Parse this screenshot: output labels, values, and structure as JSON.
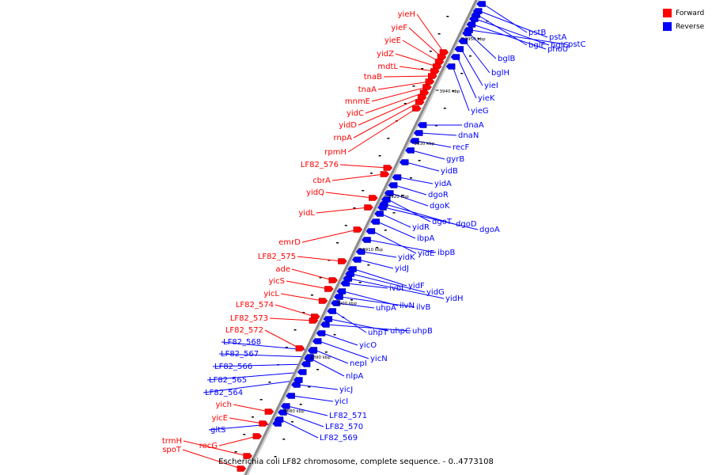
{
  "legend": {
    "forward_label": "Forward",
    "reverse_label": "Reverse",
    "forward_color": "#ff0000",
    "reverse_color": "#0000ff"
  },
  "caption": "Escherichia coli LF82 chromosome, complete sequence. - 0..4773108",
  "colors": {
    "backbone": "#8c8c8c",
    "forward": "#ff0000",
    "reverse": "#0000ff"
  },
  "ticks": [
    "3950 kbp",
    "3940 kbp",
    "3930 kbp",
    "3920 kbp",
    "3910 kbp",
    "3900 kbp",
    "3890 kbp",
    "3880 kbp"
  ],
  "forward_genes": [
    "yieH",
    "yieF",
    "yieE",
    "yidZ",
    "mdtL",
    "tnaB",
    "tnaA",
    "mnmE",
    "yidC",
    "yidD",
    "rnpA",
    "rpmH",
    "LF82_576",
    "cbrA",
    "yidQ",
    "yidL",
    "emrD",
    "LF82_575",
    "ade",
    "yicS",
    "yicL",
    "LF82_574",
    "LF82_573",
    "LF82_572",
    "yich",
    "yicE",
    "recG",
    "trmH",
    "spoT"
  ],
  "reverse_genes": [
    "pstB",
    "pstA",
    "bglF",
    "bglG",
    "phoU",
    "pstC",
    "bglB",
    "bglH",
    "yieI",
    "yieK",
    "yieG",
    "dnaA",
    "dnaN",
    "recF",
    "gyrB",
    "yidB",
    "yidA",
    "dgoR",
    "dgoK",
    "dgoT",
    "dgoD",
    "dgoA",
    "yidR",
    "ibpA",
    "yidE",
    "ibpB",
    "yidK",
    "yidJ",
    "yidF",
    "yidG",
    "yidH",
    "ivbL",
    "ilvN",
    "ilvB",
    "uhpA",
    "uhpT",
    "uhpC",
    "uhpB",
    "yicO",
    "yicN",
    "nepI",
    "nlpA",
    "yicJ",
    "yicI",
    "LF82_571",
    "LF82_570",
    "LF82_569",
    "LF82_568",
    "LF82_567",
    "LF82_566",
    "LF82_565",
    "LF82_564",
    "gltS"
  ]
}
